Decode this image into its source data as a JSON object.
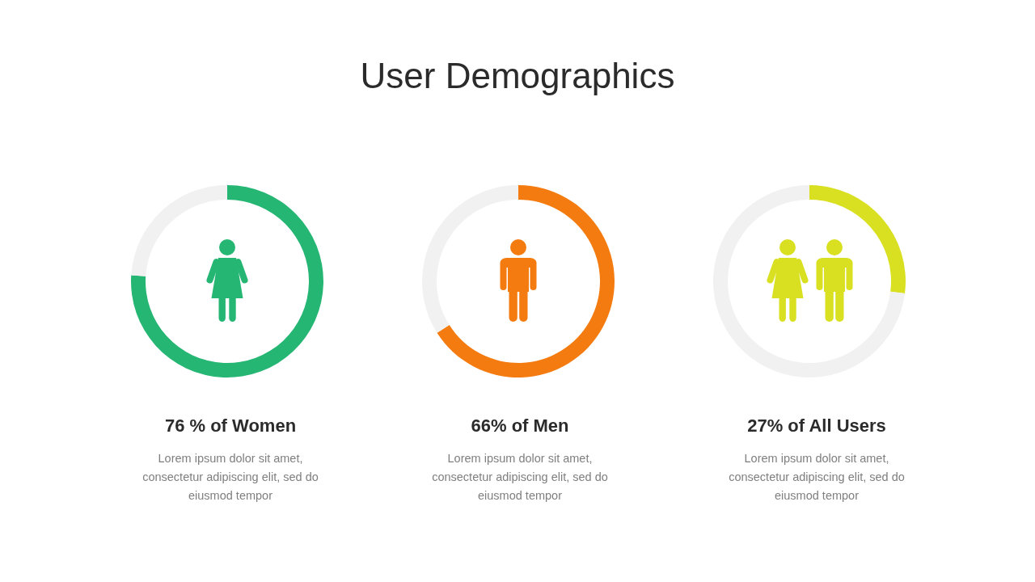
{
  "chart_data": [
    {
      "type": "other",
      "title": "User Demographics"
    },
    {
      "type": "donut",
      "title": "76 % of Women",
      "subtitle": "Lorem ipsum dolor sit amet, consectetur adipiscing elit, sed do eiusmod tempor",
      "categories": [
        null,
        null
      ],
      "values": [
        76,
        24
      ],
      "colors": [
        "#26b674",
        "#f1f1f1"
      ]
    },
    {
      "type": "donut",
      "title": "66% of Men",
      "subtitle": "Lorem ipsum dolor sit amet, consectetur adipiscing elit, sed do eiusmod tempor",
      "categories": [
        null,
        null
      ],
      "values": [
        66,
        34
      ],
      "colors": [
        "#f47b0f",
        "#f1f1f1"
      ]
    },
    {
      "type": "donut",
      "title": "27% of All Users",
      "subtitle": "Lorem ipsum dolor sit amet, consectetur adipiscing elit, sed do eiusmod tempor",
      "categories": [
        null,
        null
      ],
      "values": [
        27,
        73
      ],
      "colors": [
        "#d9e022",
        "#f1f1f1"
      ]
    }
  ]
}
